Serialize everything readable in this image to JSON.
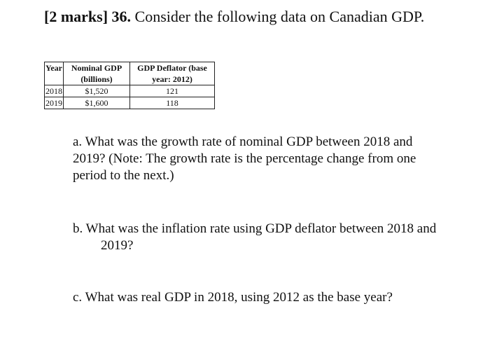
{
  "question": {
    "marks": "[2 marks]",
    "number": "36.",
    "text": "Consider the following data on Canadian GDP."
  },
  "table": {
    "headers": {
      "year": "Year",
      "nominal_line1": "Nominal GDP",
      "nominal_line2": "(billions)",
      "deflator_line1": "GDP Deflator (base",
      "deflator_line2": "year: 2012)"
    },
    "rows": [
      {
        "year": "2018",
        "nominal": "$1,520",
        "deflator": "121"
      },
      {
        "year": "2019",
        "nominal": "$1,600",
        "deflator": "118"
      }
    ]
  },
  "subquestions": {
    "a": "a. What was the growth rate of nominal GDP between 2018 and 2019? (Note: The growth rate is the percentage change from one period to the next.)",
    "b": "b. What was the inflation rate using GDP deflator between 2018 and 2019?",
    "c": "c. What was real GDP in 2018, using 2012 as the base year?"
  }
}
